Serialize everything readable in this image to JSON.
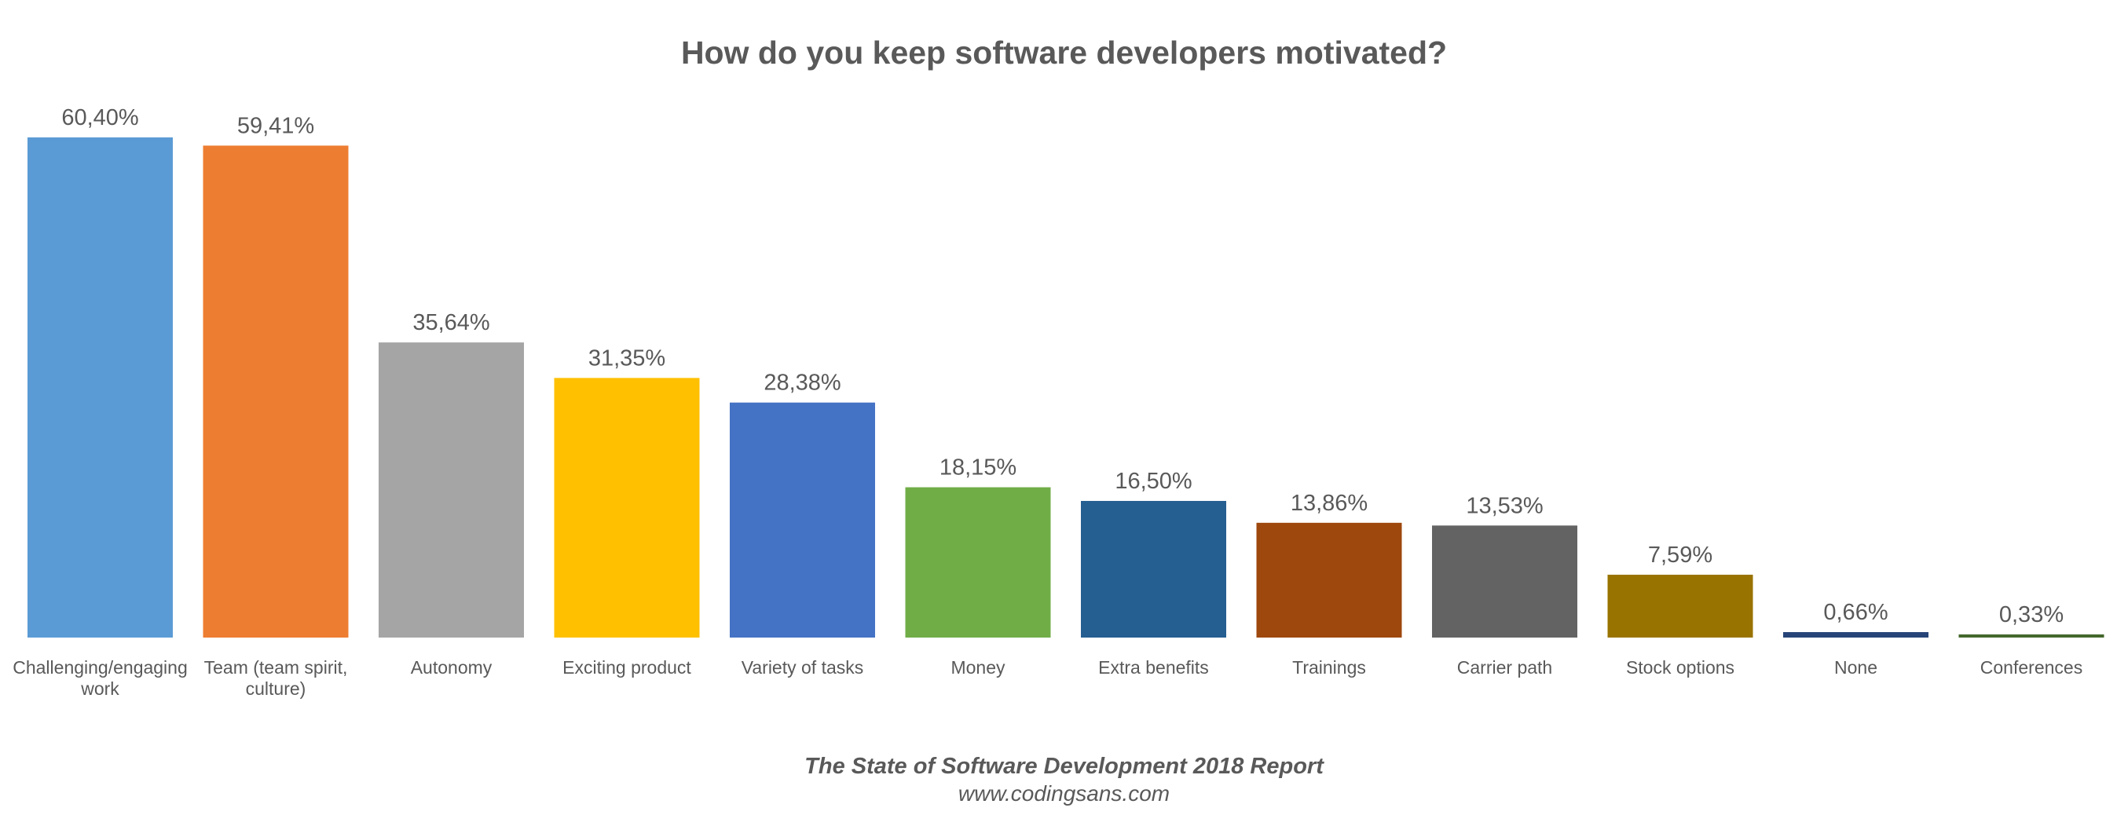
{
  "chart_data": {
    "type": "bar",
    "title": "How do you keep software developers motivated?",
    "xlabel": "",
    "ylabel": "",
    "ylim": [
      0,
      60.4
    ],
    "grid": false,
    "legend": "none",
    "categories": [
      "Challenging/engaging work",
      "Team (team spirit, culture)",
      "Autonomy",
      "Exciting product",
      "Variety of tasks",
      "Money",
      "Extra benefits",
      "Trainings",
      "Carrier path",
      "Stock options",
      "None",
      "Conferences"
    ],
    "category_lines": [
      [
        "Challenging/engaging",
        "work"
      ],
      [
        "Team (team spirit,",
        "culture)"
      ],
      [
        "Autonomy"
      ],
      [
        "Exciting product"
      ],
      [
        "Variety of tasks"
      ],
      [
        "Money"
      ],
      [
        "Extra benefits"
      ],
      [
        "Trainings"
      ],
      [
        "Carrier path"
      ],
      [
        "Stock options"
      ],
      [
        "None"
      ],
      [
        "Conferences"
      ]
    ],
    "values": [
      60.4,
      59.41,
      35.64,
      31.35,
      28.38,
      18.15,
      16.5,
      13.86,
      13.53,
      7.59,
      0.66,
      0.33
    ],
    "value_labels": [
      "60,40%",
      "59,41%",
      "35,64%",
      "31,35%",
      "28,38%",
      "18,15%",
      "16,50%",
      "13,86%",
      "13,53%",
      "7,59%",
      "0,66%",
      "0,33%"
    ],
    "unit": "%",
    "colors": [
      "#5B9BD5",
      "#ED7D31",
      "#A5A5A5",
      "#FFC000",
      "#4472C4",
      "#70AD47",
      "#255E91",
      "#9E480E",
      "#636363",
      "#997300",
      "#264478",
      "#43682B"
    ]
  },
  "footer": {
    "report": "The State of Software Development 2018 Report",
    "url": "www.codingsans.com"
  }
}
